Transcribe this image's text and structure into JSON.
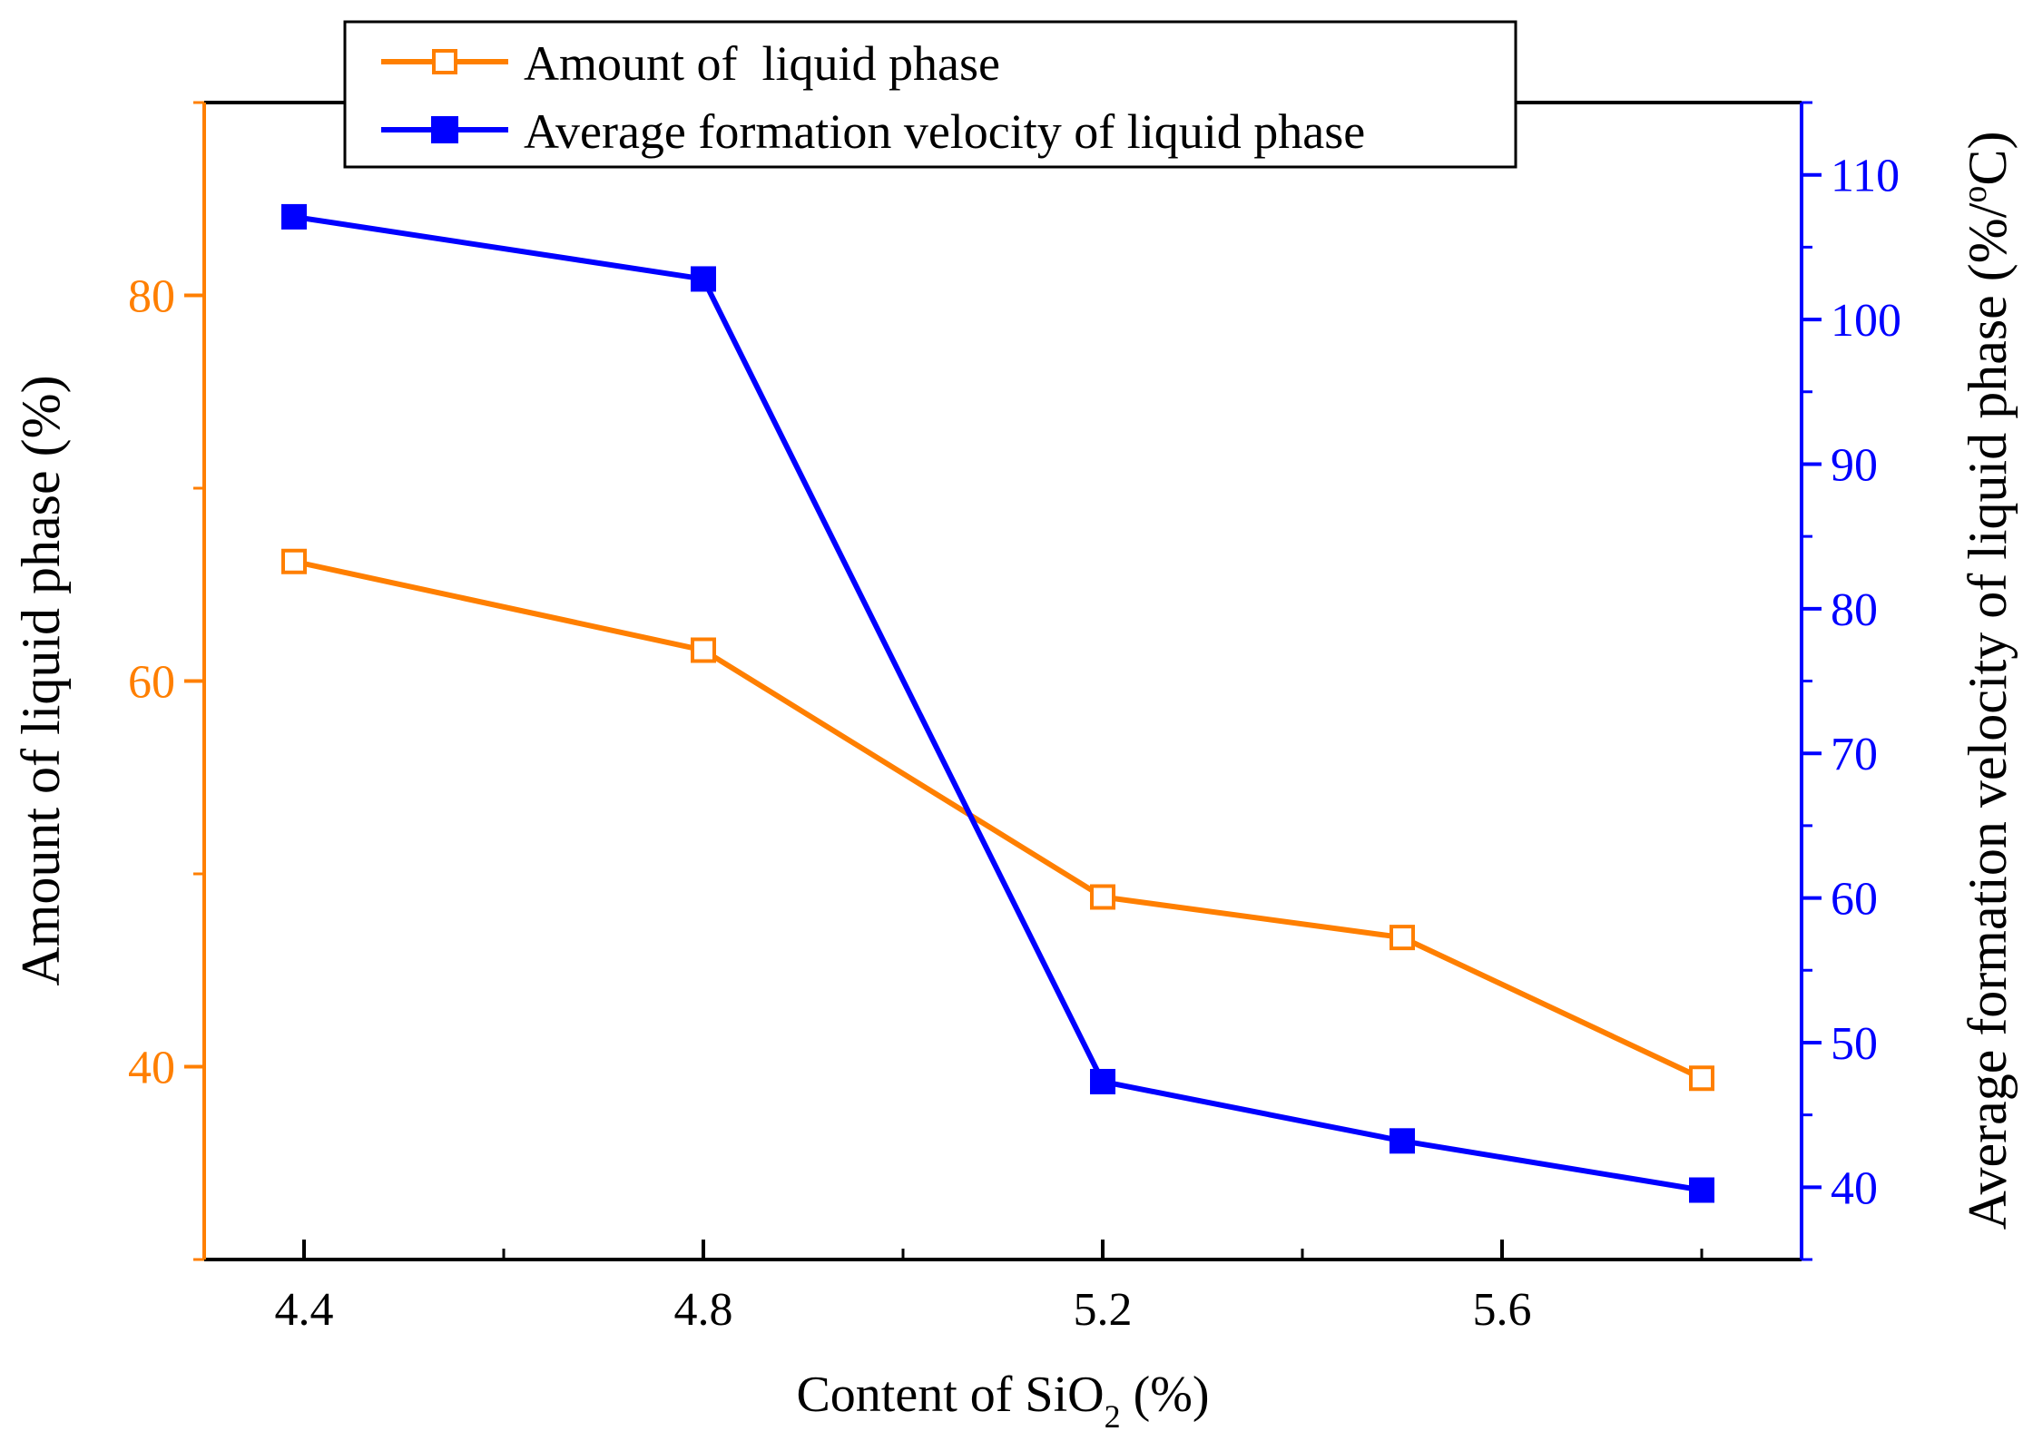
{
  "chart_data": {
    "type": "line",
    "x": [
      4.39,
      4.8,
      5.2,
      5.5,
      5.8
    ],
    "xlabel_prefix": "Content of SiO",
    "xlabel_sub": "2",
    "xlabel_suffix": " (%)",
    "xlim": [
      4.3,
      5.9
    ],
    "xticks": [
      4.4,
      4.8,
      5.2,
      5.6
    ],
    "xtick_labels": [
      "4.4",
      "4.8",
      "5.2",
      "5.6"
    ],
    "series": [
      {
        "name": "Amount of  liquid phase",
        "axis": "left",
        "color": "#ff7f00",
        "marker": "open-square",
        "values": [
          66.2,
          61.6,
          48.8,
          46.7,
          39.4
        ]
      },
      {
        "name": "Average formation velocity of liquid phase",
        "axis": "right",
        "color": "#0000ff",
        "marker": "filled-square",
        "values": [
          107.1,
          102.8,
          47.3,
          43.2,
          39.8
        ]
      }
    ],
    "left_axis": {
      "label": "Amount of  liquid phase (%)",
      "color": "#ff7f00",
      "lim": [
        30,
        90
      ],
      "ticks": [
        40,
        60,
        80
      ],
      "tick_labels": [
        "40",
        "60",
        "80"
      ]
    },
    "right_axis": {
      "label_prefix": "Average formation velocity of liquid phase (%/",
      "label_sup": "o",
      "label_suffix": "C)",
      "color": "#0000ff",
      "lim": [
        35,
        115
      ],
      "ticks": [
        40,
        50,
        60,
        70,
        80,
        90,
        100,
        110
      ],
      "tick_labels": [
        "40",
        "50",
        "60",
        "70",
        "80",
        "90",
        "100",
        "110"
      ]
    },
    "legend_position": "top-center"
  }
}
